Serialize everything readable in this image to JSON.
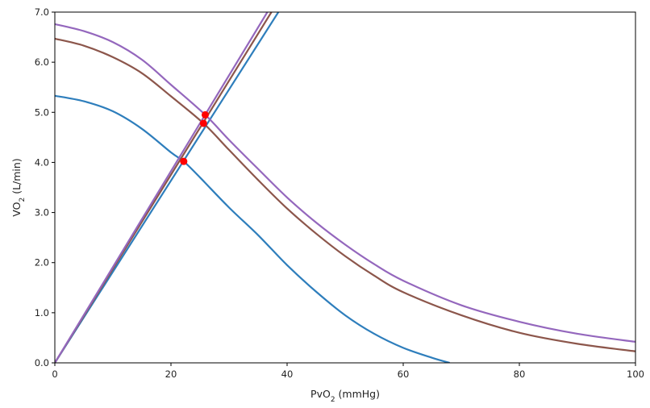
{
  "chart_data": {
    "type": "line",
    "title": "",
    "xlabel": {
      "base": "PvO",
      "sub": "2",
      "rest": " (mmHg)"
    },
    "ylabel": {
      "base": "VO",
      "sub": "2",
      "rest": " (L/min)"
    },
    "xlim": [
      0,
      100
    ],
    "ylim": [
      0,
      7
    ],
    "xticks": [
      0,
      20,
      40,
      60,
      80,
      100
    ],
    "yticks": [
      0.0,
      1.0,
      2.0,
      3.0,
      4.0,
      5.0,
      6.0,
      7.0
    ],
    "xtick_labels": [
      "0",
      "20",
      "40",
      "60",
      "80",
      "100"
    ],
    "ytick_labels": [
      "0.0",
      "1.0",
      "2.0",
      "3.0",
      "4.0",
      "5.0",
      "6.0",
      "7.0"
    ],
    "grid": false,
    "legend": "none",
    "series": [
      {
        "kind": "curve",
        "color": "#2e7ebc",
        "x": [
          0,
          5,
          10,
          15,
          20,
          22.2,
          25,
          30,
          35,
          40,
          45,
          50,
          55,
          60,
          65,
          68
        ],
        "y": [
          5.33,
          5.22,
          5.02,
          4.67,
          4.2,
          4.02,
          3.7,
          3.1,
          2.55,
          1.95,
          1.42,
          0.95,
          0.58,
          0.3,
          0.1,
          0.0
        ]
      },
      {
        "kind": "line",
        "color": "#2e7ebc",
        "x": [
          0,
          38.5
        ],
        "y": [
          0,
          7.0
        ]
      },
      {
        "kind": "curve",
        "color": "#8c564b",
        "x": [
          0,
          5,
          10,
          15,
          20,
          25.6,
          30,
          35,
          40,
          45,
          50,
          55,
          60,
          70,
          80,
          90,
          100
        ],
        "y": [
          6.47,
          6.33,
          6.1,
          5.78,
          5.32,
          4.78,
          4.25,
          3.65,
          3.08,
          2.58,
          2.13,
          1.74,
          1.41,
          0.95,
          0.6,
          0.38,
          0.23
        ]
      },
      {
        "kind": "line",
        "color": "#8c564b",
        "x": [
          0,
          37.3
        ],
        "y": [
          0,
          7.0
        ]
      },
      {
        "kind": "curve",
        "color": "#9467bd",
        "x": [
          0,
          5,
          10,
          15,
          20,
          25.9,
          30,
          35,
          40,
          45,
          50,
          55,
          60,
          70,
          80,
          90,
          100
        ],
        "y": [
          6.76,
          6.62,
          6.4,
          6.05,
          5.55,
          4.95,
          4.45,
          3.87,
          3.3,
          2.8,
          2.36,
          1.97,
          1.64,
          1.15,
          0.82,
          0.58,
          0.42
        ]
      },
      {
        "kind": "line",
        "color": "#9467bd",
        "x": [
          0,
          36.6
        ],
        "y": [
          0,
          7.0
        ]
      }
    ],
    "points": {
      "color": "#ff0000",
      "x": [
        22.2,
        25.6,
        25.9
      ],
      "y": [
        4.02,
        4.78,
        4.95
      ]
    }
  }
}
